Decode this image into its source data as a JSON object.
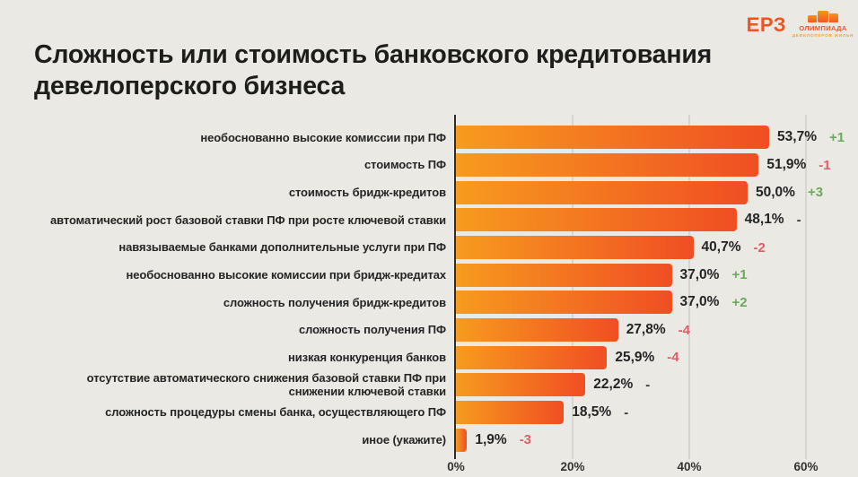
{
  "header": {
    "title": "Сложность или стоимость банковского кредитования девелоперского бизнеса",
    "logo_erz": "ЕРЗ",
    "olympiad": {
      "title": "ОЛИМПИАДА",
      "subtext": "ДЕВЕЛОПЕРОВ ЖИЛЬЯ"
    }
  },
  "chart_data": {
    "type": "bar",
    "orientation": "horizontal",
    "title": "Сложность или стоимость банковского кредитования девелоперского бизнеса",
    "categories": [
      "необоснованно высокие комиссии при ПФ",
      "стоимость ПФ",
      "стоимость бридж-кредитов",
      "автоматический рост базовой ставки ПФ при росте ключевой ставки",
      "навязываемые банками дополнительные услуги при ПФ",
      "необоснованно высокие комиссии при бридж-кредитах",
      "сложность получения бридж-кредитов",
      "сложность получения ПФ",
      "низкая конкуренция банков",
      "отсутствие автоматического снижения базовой ставки ПФ при снижении ключевой ставки",
      "сложность процедуры смены банка, осуществляющего ПФ",
      "иное (укажите)"
    ],
    "values": [
      53.7,
      51.9,
      50.0,
      48.1,
      40.7,
      37.0,
      37.0,
      27.8,
      25.9,
      22.2,
      18.5,
      1.9
    ],
    "value_labels": [
      "53,7%",
      "51,9%",
      "50,0%",
      "48,1%",
      "40,7%",
      "37,0%",
      "37,0%",
      "27,8%",
      "25,9%",
      "22,2%",
      "18,5%",
      "1,9%"
    ],
    "changes": [
      "+1",
      "-1",
      "+3",
      "-",
      "-2",
      "+1",
      "+2",
      "-4",
      "-4",
      "-",
      "-",
      "-3"
    ],
    "x_ticks": {
      "labels": [
        "0%",
        "20%",
        "40%",
        "60%"
      ],
      "values": [
        0,
        20,
        40,
        60
      ]
    },
    "xlim": [
      0,
      69
    ],
    "grid": true,
    "legend": false,
    "colors": {
      "bar_gradient_start": "#F79B1E",
      "bar_gradient_end": "#F04E23",
      "positive_change": "#6AA95E",
      "negative_change": "#DF5F66",
      "neutral_change": "#3A3A3A",
      "background": "#EBE9E4",
      "title_text": "#1D1D1B",
      "gridline": "#D7D5CF",
      "axis": "#2E2D2B",
      "accent": "#F2541F"
    }
  }
}
